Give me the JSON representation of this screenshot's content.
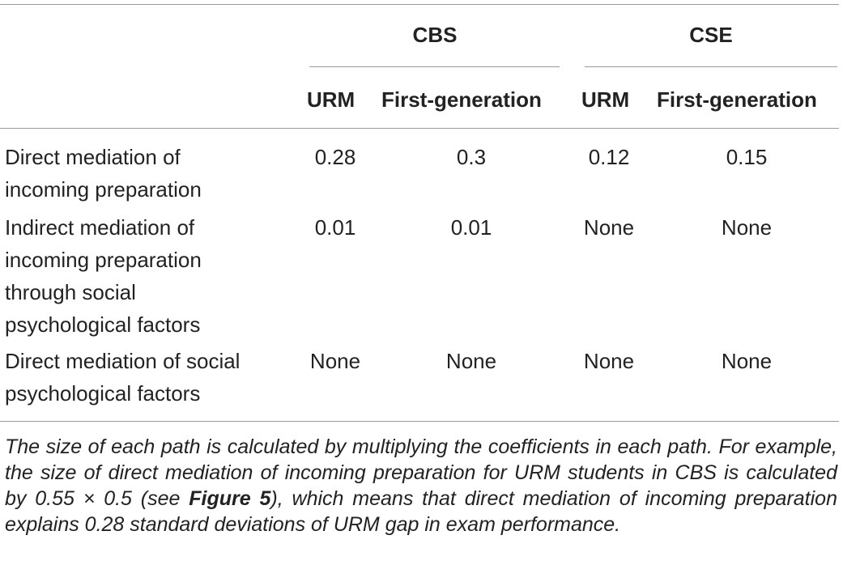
{
  "table": {
    "groups": [
      "CBS",
      "CSE"
    ],
    "subheaders": [
      "URM",
      "First-generation",
      "URM",
      "First-generation"
    ],
    "rows": [
      {
        "label": "Direct mediation of incoming preparation",
        "label_lines": [
          "Direct mediation of",
          "incoming preparation"
        ],
        "values": [
          "0.28",
          "0.3",
          "0.12",
          "0.15"
        ]
      },
      {
        "label": "Indirect mediation of incoming preparation through social psychological factors",
        "label_lines": [
          "Indirect mediation of",
          "incoming preparation",
          "through social",
          "psychological factors"
        ],
        "values": [
          "0.01",
          "0.01",
          "None",
          "None"
        ]
      },
      {
        "label": "Direct mediation of social psychological factors",
        "label_lines": [
          "Direct mediation of social",
          "psychological factors"
        ],
        "values": [
          "None",
          "None",
          "None",
          "None"
        ]
      }
    ]
  },
  "footnote": {
    "part1": "The size of each path is calculated by multiplying the coefficients in each path. For example, the size of direct mediation of incoming preparation for URM students in CBS is calculated by 0.55 × 0.5 (see ",
    "figure_ref": "Figure 5",
    "part2": "), which means that direct mediation of incoming preparation explains 0.28 standard deviations of URM gap in exam performance."
  }
}
